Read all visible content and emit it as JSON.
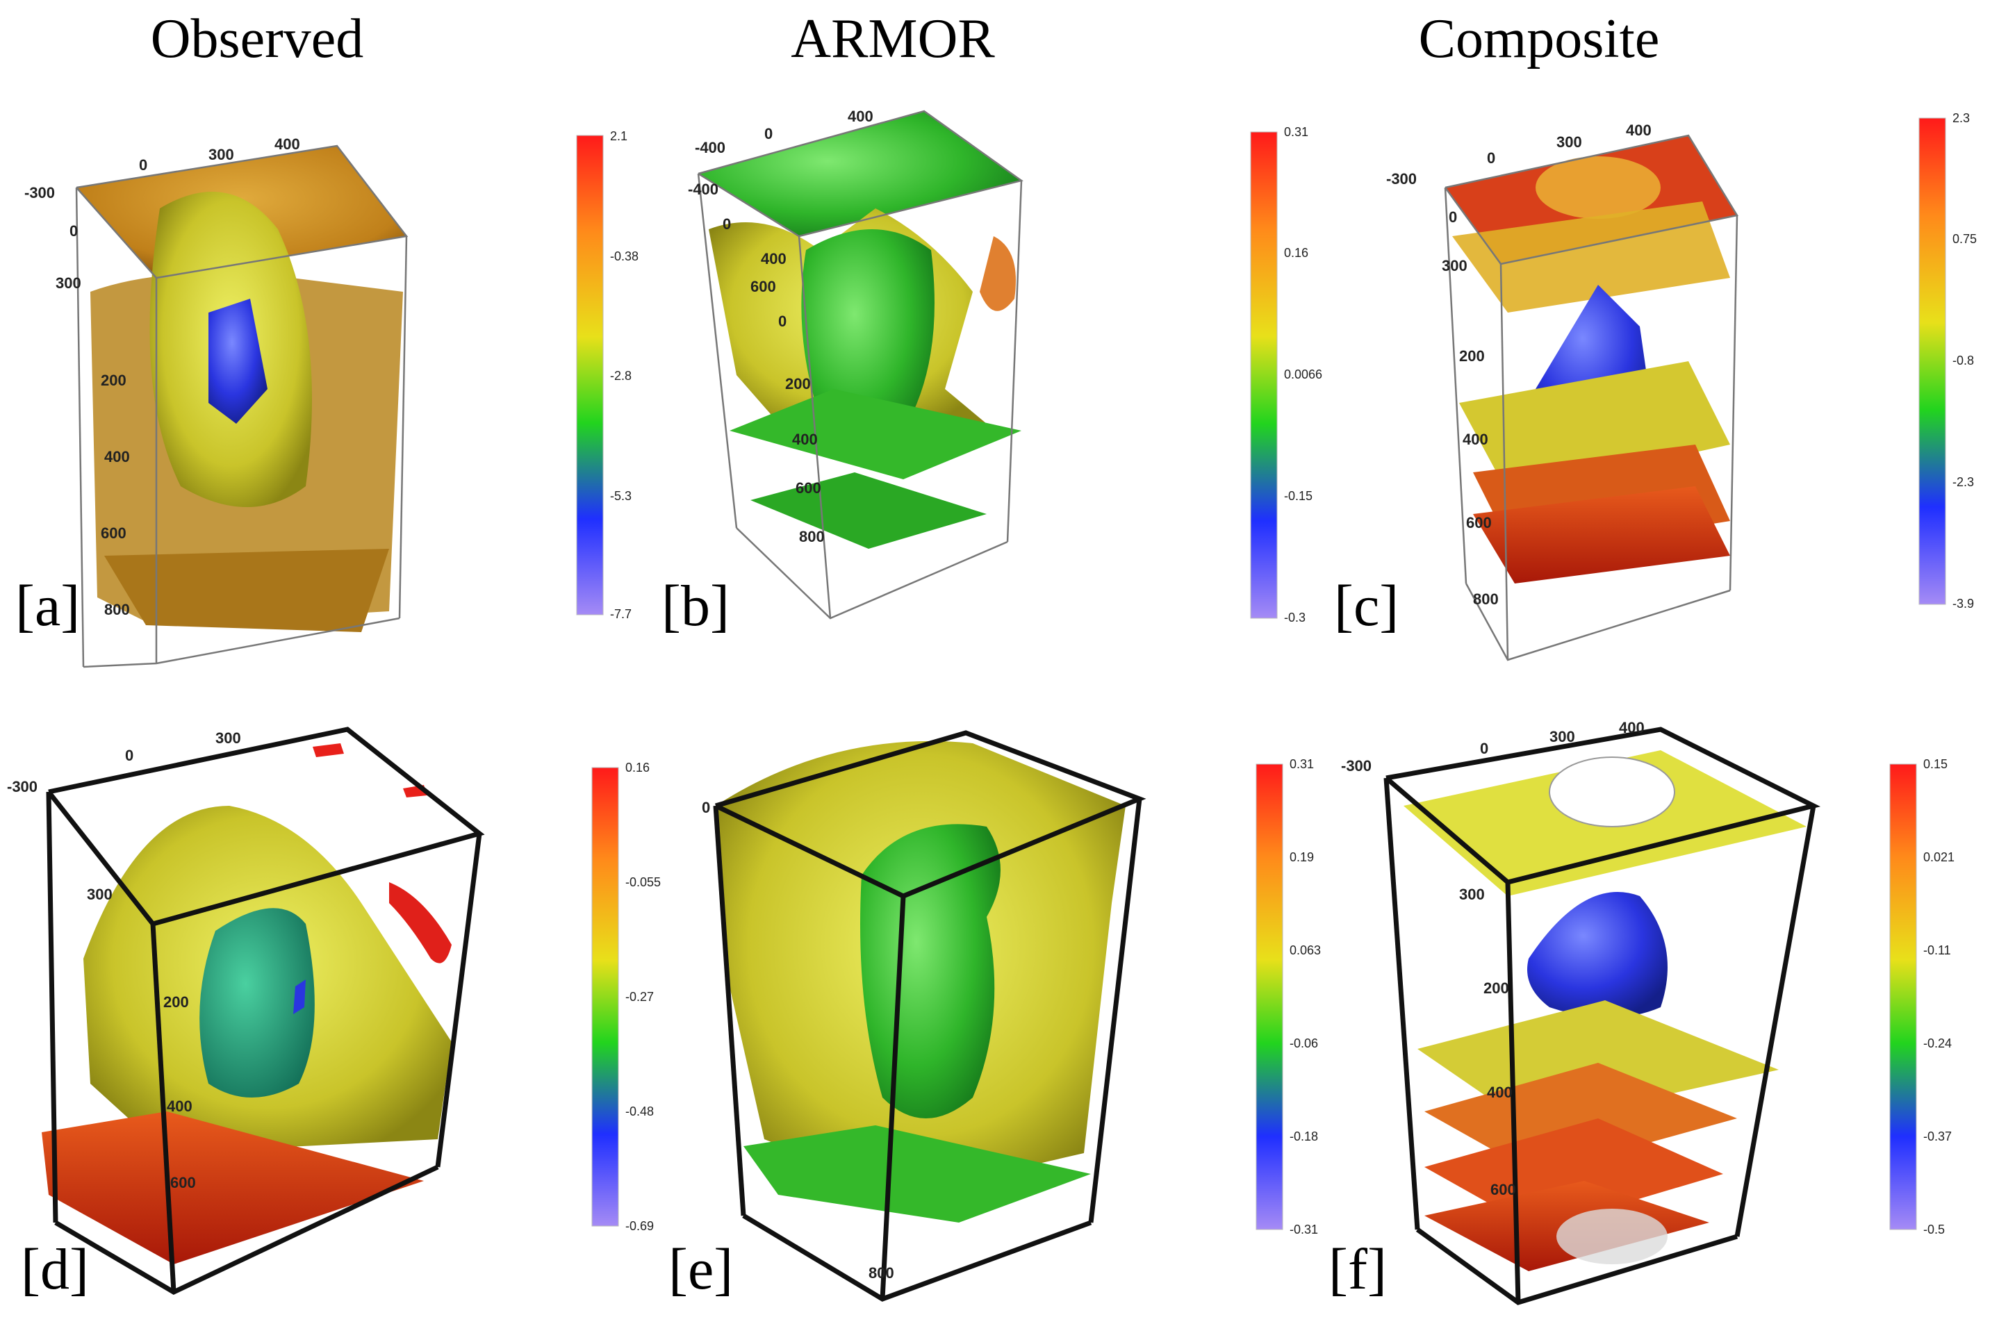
{
  "columns": {
    "observed": "Observed",
    "armor": "ARMOR",
    "composite": "Composite"
  },
  "panels": {
    "a": "[a]",
    "b": "[b]",
    "c": "[c]",
    "d": "[d]",
    "e": "[e]",
    "f": "[f]"
  },
  "axis_labels": {
    "a": [
      "-300",
      "0",
      "300",
      "400",
      "0",
      "300",
      "200",
      "400",
      "600",
      "800"
    ],
    "b": [
      "-400",
      "0",
      "400",
      "-400",
      "0",
      "400",
      "600",
      "0",
      "200",
      "400",
      "600",
      "800"
    ],
    "c": [
      "-300",
      "0",
      "300",
      "400",
      "0",
      "300",
      "200",
      "400",
      "600",
      "800"
    ],
    "d": [
      "-300",
      "0",
      "300",
      "300",
      "200",
      "400",
      "600"
    ],
    "e": [
      "0",
      "800"
    ],
    "f": [
      "-300",
      "0",
      "300",
      "400",
      "300",
      "200",
      "400",
      "600"
    ]
  },
  "colorbars": {
    "a": {
      "ticks": [
        "2.1",
        "-0.38",
        "-2.8",
        "-5.3",
        "-7.7"
      ]
    },
    "b": {
      "ticks": [
        "0.31",
        "0.16",
        "0.0066",
        "-0.15",
        "-0.3"
      ]
    },
    "c": {
      "ticks": [
        "2.3",
        "0.75",
        "-0.8",
        "-2.3",
        "-3.9"
      ]
    },
    "d": {
      "ticks": [
        "0.16",
        "-0.055",
        "-0.27",
        "-0.48",
        "-0.69"
      ]
    },
    "e": {
      "ticks": [
        "0.31",
        "0.19",
        "0.063",
        "-0.06",
        "-0.18",
        "-0.31"
      ]
    },
    "f": {
      "ticks": [
        "0.15",
        "0.021",
        "-0.11",
        "-0.24",
        "-0.37",
        "-0.5"
      ]
    }
  },
  "colors": {
    "red": "#e8231c",
    "orange": "#f08a1c",
    "yellow": "#d8d42a",
    "green": "#34b82a",
    "blue": "#2f3fe0",
    "violet": "#a78bf2",
    "teal": "#22a682",
    "brown_orange": "#c98a1f"
  }
}
